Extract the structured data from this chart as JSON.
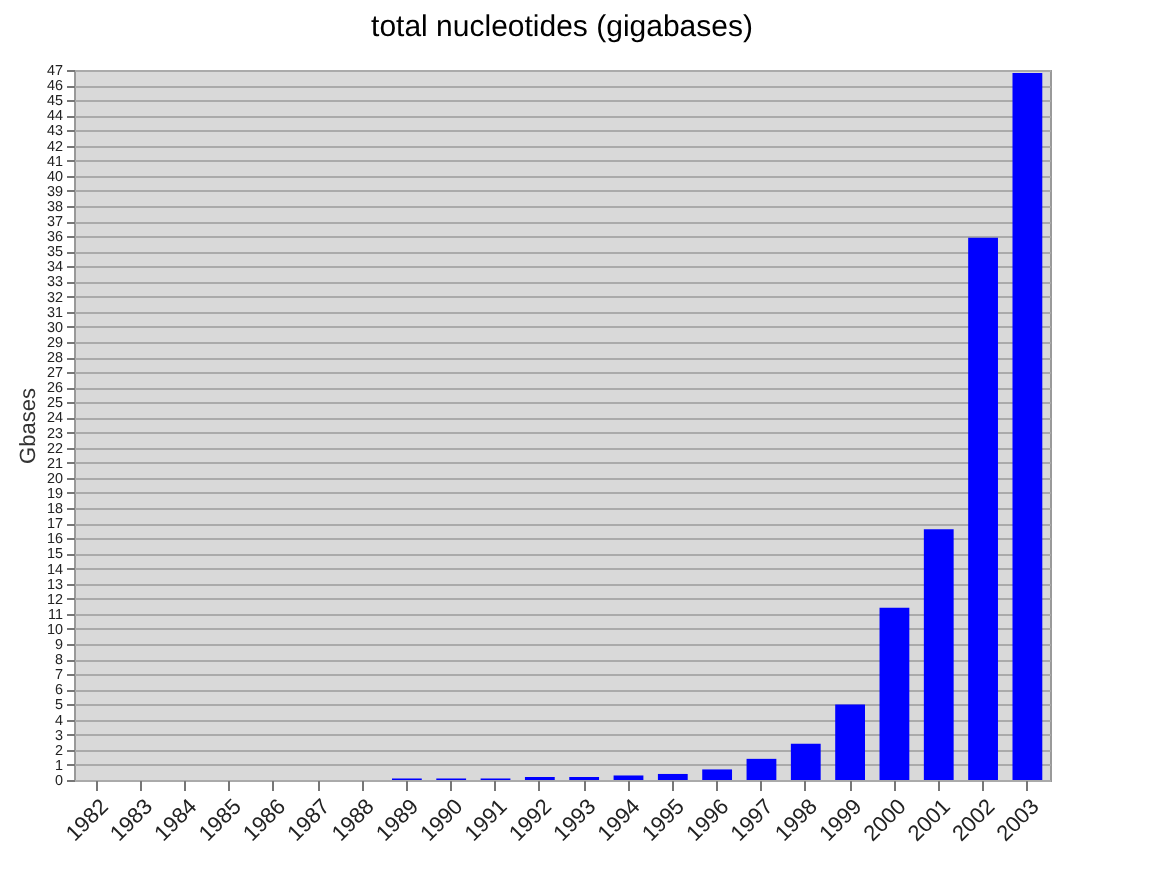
{
  "chart_data": {
    "type": "bar",
    "title": "total nucleotides (gigabases)",
    "ylabel": "Gbases",
    "categories": [
      "1982",
      "1983",
      "1984",
      "1985",
      "1986",
      "1987",
      "1988",
      "1989",
      "1990",
      "1991",
      "1992",
      "1993",
      "1994",
      "1995",
      "1996",
      "1997",
      "1998",
      "1999",
      "2000",
      "2001",
      "2002",
      "2003"
    ],
    "values": [
      0,
      0,
      0,
      0,
      0,
      0,
      0,
      0.1,
      0.1,
      0.1,
      0.2,
      0.2,
      0.3,
      0.4,
      0.7,
      1.4,
      2.4,
      5.0,
      11.4,
      16.6,
      35.9,
      46.8
    ],
    "color": "#0000ff",
    "ylim": [
      0,
      47
    ],
    "yticks": [
      0,
      1,
      2,
      3,
      4,
      5,
      6,
      7,
      8,
      9,
      10,
      11,
      12,
      13,
      14,
      15,
      16,
      17,
      18,
      19,
      20,
      21,
      22,
      23,
      24,
      25,
      26,
      27,
      28,
      29,
      30,
      31,
      32,
      33,
      34,
      35,
      36,
      37,
      38,
      39,
      40,
      41,
      42,
      43,
      44,
      45,
      46,
      47
    ],
    "grid": "y"
  }
}
